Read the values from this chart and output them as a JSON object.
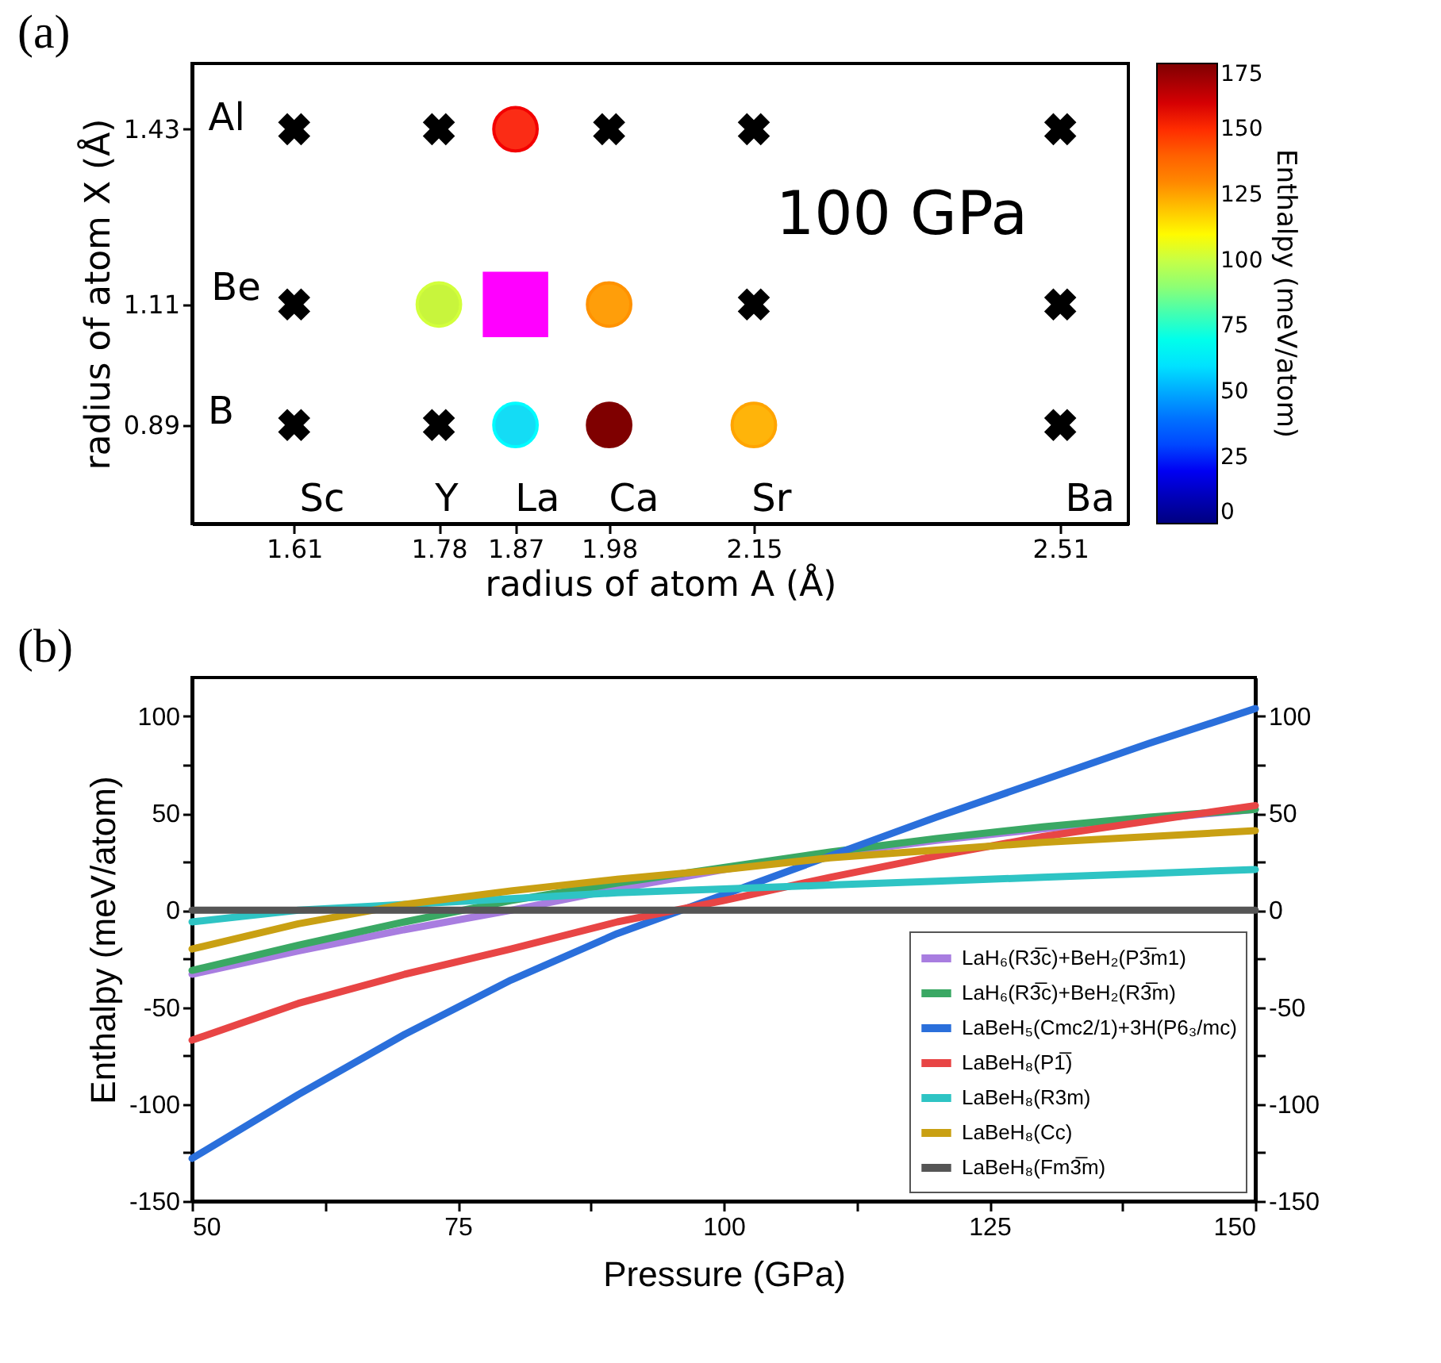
{
  "chart_data": [
    {
      "type": "scatter",
      "title": "(a)",
      "xlabel": "radius of atom A (Å)",
      "ylabel": "radius of atom X (Å)",
      "clabel": "Enthalpy (meV/atom)",
      "xlim": [
        1.49,
        2.59
      ],
      "xticks": [
        1.61,
        1.78,
        1.87,
        1.98,
        2.15,
        2.51
      ],
      "ylim": [
        0.71,
        1.55
      ],
      "yticks": [
        0.89,
        1.11,
        1.43
      ],
      "clim": [
        0,
        175
      ],
      "cticks": [
        0,
        25,
        50,
        75,
        100,
        125,
        150,
        175
      ],
      "grid": false,
      "series": [
        {
          "type": "scatter",
          "marker": "cross",
          "color": "#000000",
          "x": [
            1.61,
            1.78,
            1.98,
            2.15,
            2.51,
            1.61,
            2.15,
            2.51,
            1.61,
            1.78,
            2.51
          ],
          "values": [
            1.43,
            1.43,
            1.43,
            1.43,
            1.43,
            1.11,
            1.11,
            1.11,
            0.89,
            0.89,
            0.89
          ]
        },
        {
          "type": "scatter",
          "marker": "circle",
          "x": [
            1.87,
            1.78,
            1.98,
            1.87,
            1.98,
            2.15
          ],
          "values": [
            1.43,
            1.11,
            1.11,
            0.89,
            0.89,
            0.89
          ],
          "cvalues": [
            155,
            102,
            128,
            65,
            175,
            125
          ],
          "colors": [
            "#fb2c15",
            "#c8f53c",
            "#ff9e0a",
            "#14dcf5",
            "#7f0000",
            "#ffb40a"
          ]
        },
        {
          "type": "scatter",
          "marker": "square",
          "color": "#ff00ff",
          "x": [
            1.87
          ],
          "values": [
            1.11
          ]
        }
      ],
      "annotations": [
        "Al",
        "Be",
        "B",
        "Sc",
        "Y",
        "La",
        "Ca",
        "Sr",
        "Ba",
        "100 GPa"
      ]
    },
    {
      "type": "line",
      "title": "(b)",
      "xlabel": "Pressure (GPa)",
      "ylabel": "Enthalpy (meV/atom)",
      "x": [
        50,
        60,
        70,
        80,
        90,
        100,
        110,
        120,
        130,
        140,
        150
      ],
      "xlim": [
        50,
        150
      ],
      "xticks": [
        50,
        {
          "value": 62.5,
          "label": null
        },
        75,
        {
          "value": 87.5,
          "label": null
        },
        100,
        {
          "value": 112.5,
          "label": null
        },
        125,
        {
          "value": 137.5,
          "label": null
        },
        150
      ],
      "ylim": [
        -150,
        120
      ],
      "yticks": [
        -150,
        {
          "value": -125,
          "label": null
        },
        -100,
        {
          "value": -75,
          "label": null
        },
        -50,
        {
          "value": -25,
          "label": null
        },
        0,
        {
          "value": 25,
          "label": null
        },
        50,
        {
          "value": 75,
          "label": null
        },
        100
      ],
      "y2lim": [
        -150,
        120
      ],
      "y2ticks": [
        -150,
        {
          "value": -125,
          "label": null
        },
        -100,
        {
          "value": -75,
          "label": null
        },
        -50,
        {
          "value": -25,
          "label": null
        },
        0,
        {
          "value": 25,
          "label": null
        },
        50,
        {
          "value": 75,
          "label": null
        },
        100
      ],
      "legend": "bottom right",
      "grid": false,
      "series": [
        {
          "name": "LaH₆(R3̅c)+BeH₂(P3̅m1)",
          "color": "#a87de0",
          "values": [
            -33,
            -21,
            -10,
            0,
            11,
            21,
            29,
            36,
            42,
            47,
            52
          ]
        },
        {
          "name": "LaH₆(R3̅c)+BeH₂(R3̅m)",
          "color": "#3aa864",
          "values": [
            -31,
            -18,
            -6,
            5,
            14,
            22,
            30,
            37,
            43,
            48,
            52
          ]
        },
        {
          "name": "LaBeH₅(Cmc2/1)+3H(P6₃/mc)",
          "color": "#2a6fdb",
          "values": [
            -128,
            -95,
            -64,
            -36,
            -12,
            8,
            28,
            48,
            67,
            86,
            104
          ]
        },
        {
          "name": "LaBeH₈(P1̅)",
          "color": "#e84545",
          "values": [
            -67,
            -48,
            -33,
            -20,
            -6,
            5,
            17,
            28,
            38,
            46,
            54
          ]
        },
        {
          "name": "LaBeH₈(R3m)",
          "color": "#2ec4c4",
          "values": [
            -6,
            0,
            3,
            6,
            9,
            11,
            13,
            15,
            17,
            19,
            21
          ]
        },
        {
          "name": "LaBeH₈(Cc)",
          "color": "#c9a013",
          "values": [
            -20,
            -7,
            3,
            10,
            16,
            21,
            27,
            31,
            35,
            38,
            41
          ]
        },
        {
          "name": "LaBeH₈(Fm3̅m)",
          "color": "#555555",
          "values": [
            0,
            0,
            0,
            0,
            0,
            0,
            0,
            0,
            0,
            0,
            0
          ]
        }
      ]
    }
  ]
}
